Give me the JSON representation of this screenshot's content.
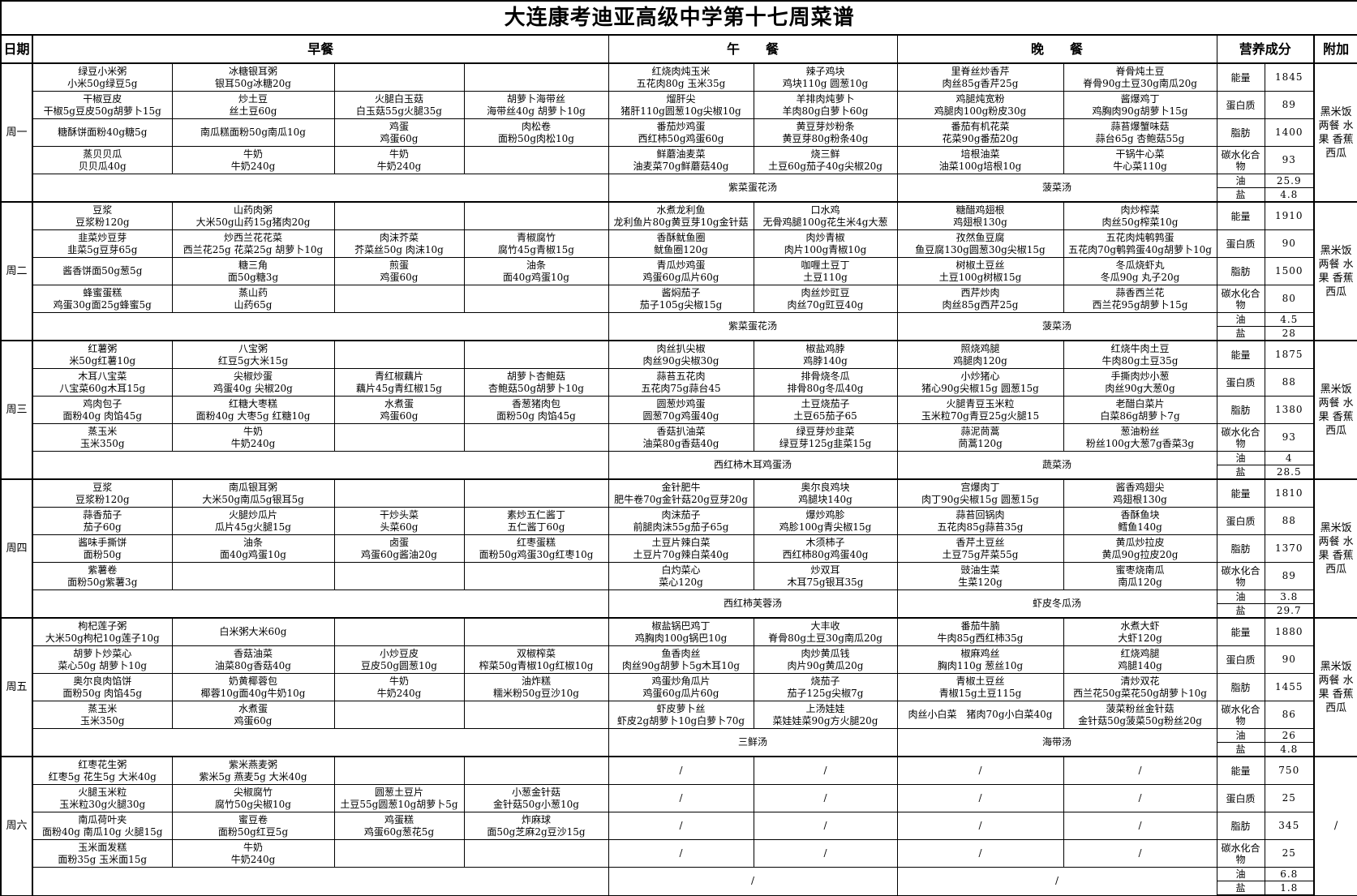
{
  "title": "大连康考迪亚高级中学第十七周菜谱",
  "headers": {
    "date": "日期",
    "breakfast": "早餐",
    "lunch": "午　　餐",
    "dinner": "晚　　餐",
    "nutrition": "营养成分",
    "extra": "附加"
  },
  "nutrition_labels": [
    "能量",
    "蛋白质",
    "脂肪",
    "碳水化合物",
    "油",
    "盐"
  ],
  "days": [
    {
      "name": "周一",
      "breakfast": [
        [
          [
            "绿豆小米粥",
            "小米50g绿豆5g"
          ],
          [
            "冰糖银耳粥",
            "银耳50g冰糖20g"
          ],
          [
            "",
            ""
          ],
          [
            "",
            ""
          ]
        ],
        [
          [
            "干椒豆皮",
            "干椒5g豆皮50g胡萝卜15g"
          ],
          [
            "炒土豆",
            "丝土豆60g"
          ],
          [
            "火腿白玉菇",
            "白玉菇55g火腿35g"
          ],
          [
            "胡萝卜海带丝",
            "海带丝40g 胡萝卜10g"
          ]
        ],
        [
          [
            "糖酥饼面粉40g糖5g",
            ""
          ],
          [
            "南瓜糕面粉50g南瓜10g",
            ""
          ],
          [
            "鸡蛋",
            "鸡蛋60g"
          ],
          [
            "肉松卷",
            "面粉50g肉松10g"
          ]
        ],
        [
          [
            "蒸贝贝瓜",
            "贝贝瓜40g"
          ],
          [
            "牛奶",
            "牛奶240g"
          ],
          [
            "牛奶",
            "牛奶240g"
          ],
          [
            "",
            ""
          ]
        ]
      ],
      "lunch": [
        [
          [
            "红烧肉炖玉米",
            "五花肉80g 玉米35g"
          ],
          [
            "辣子鸡块",
            "鸡块110g 圆葱10g"
          ]
        ],
        [
          [
            "熘肝尖",
            "猪肝110g圆葱10g尖椒10g"
          ],
          [
            "羊排肉炖萝卜",
            "羊肉80g白萝卜60g"
          ]
        ],
        [
          [
            "番茄炒鸡蛋",
            "西红柿50g鸡蛋60g"
          ],
          [
            "黄豆芽炒粉条",
            "黄豆芽80g粉条40g"
          ]
        ],
        [
          [
            "鲜蘑油麦菜",
            "油麦菜70g鲜蘑菇40g"
          ],
          [
            "烧三鲜",
            "土豆60g茄子40g尖椒20g"
          ]
        ]
      ],
      "dinner": [
        [
          [
            "里脊丝炒香芹",
            "肉丝85g香芹25g"
          ],
          [
            "脊骨炖土豆",
            "脊骨90g土豆30g南瓜20g"
          ]
        ],
        [
          [
            "鸡腿炖宽粉",
            "鸡腿肉100g粉皮30g"
          ],
          [
            "酱爆鸡丁",
            "鸡胸肉90g胡萝卜15g"
          ]
        ],
        [
          [
            "番茄有机花菜",
            "花菜90g番茄20g"
          ],
          [
            "蒜苔爆蟹味菇",
            "蒜台65g 杏鲍菇55g"
          ]
        ],
        [
          [
            "培根油菜",
            "油菜100g培根10g"
          ],
          [
            "干锅牛心菜",
            "牛心菜110g"
          ]
        ]
      ],
      "soup_lunch": "紫菜蛋花汤",
      "soup_dinner": "菠菜汤",
      "nutrition": [
        "1845",
        "89",
        "1400",
        "93",
        "25.9",
        "4.8"
      ],
      "extra": "黑米饭 两餐 水果 香蕉 西瓜"
    },
    {
      "name": "周二",
      "breakfast": [
        [
          [
            "豆浆",
            "豆浆粉120g"
          ],
          [
            "山药肉粥",
            "大米50g山药15g猪肉20g"
          ],
          [
            "",
            ""
          ],
          [
            "",
            ""
          ]
        ],
        [
          [
            "韭菜炒豆芽",
            "韭菜5g豆芽65g"
          ],
          [
            "炒西兰花花菜",
            "西兰花25g 花菜25g 胡萝卜10g"
          ],
          [
            "肉沫芥菜",
            "芥菜丝50g 肉沫10g"
          ],
          [
            "青椒腐竹",
            "腐竹45g青椒15g"
          ]
        ],
        [
          [
            "酱香饼面50g葱5g",
            ""
          ],
          [
            "糖三角",
            "面50g糖3g"
          ],
          [
            "煎蛋",
            "鸡蛋60g"
          ],
          [
            "油条",
            "面40g鸡蛋10g"
          ]
        ],
        [
          [
            "蜂蜜蛋糕",
            "鸡蛋30g面25g蜂蜜5g"
          ],
          [
            "蒸山药",
            "山药65g"
          ],
          [
            "",
            ""
          ],
          [
            "",
            ""
          ]
        ]
      ],
      "lunch": [
        [
          [
            "水煮龙利鱼",
            "龙利鱼片80g黄豆芽10g金针菇"
          ],
          [
            "口水鸡",
            "无骨鸡腿100g花生米4g大葱"
          ]
        ],
        [
          [
            "香酥鱿鱼圈",
            "鱿鱼圈120g"
          ],
          [
            "肉炒青椒",
            "肉片100g青椒10g"
          ]
        ],
        [
          [
            "青瓜炒鸡蛋",
            "鸡蛋60g瓜片60g"
          ],
          [
            "咖喱土豆丁",
            "土豆110g"
          ]
        ],
        [
          [
            "酱焖茄子",
            "茄子105g尖椒15g"
          ],
          [
            "肉丝炒豇豆",
            "肉丝70g豇豆40g"
          ]
        ]
      ],
      "dinner": [
        [
          [
            "糖醋鸡翅根",
            "鸡翅根130g"
          ],
          [
            "肉炒榨菜",
            "肉丝50g榨菜10g"
          ]
        ],
        [
          [
            "孜然鱼豆腐",
            "鱼豆腐130g圆葱30g尖椒15g"
          ],
          [
            "五花肉炖鹌鹑蛋",
            "五花肉70g鹌鹑蛋40g胡萝卜10g"
          ]
        ],
        [
          [
            "树椒土豆丝",
            "土豆100g树椒15g"
          ],
          [
            "冬瓜烧虾丸",
            "冬瓜90g 丸子20g"
          ]
        ],
        [
          [
            "西芹炒肉",
            "肉丝85g西芹25g"
          ],
          [
            "蒜香西兰花",
            "西兰花95g胡萝卜15g"
          ]
        ]
      ],
      "soup_lunch": "紫菜蛋花汤",
      "soup_dinner": "菠菜汤",
      "nutrition": [
        "1910",
        "90",
        "1500",
        "80",
        "4.5",
        "28"
      ],
      "extra": "黑米饭 两餐 水果 香蕉 西瓜"
    },
    {
      "name": "周三",
      "breakfast": [
        [
          [
            "红薯粥",
            "米50g红薯10g"
          ],
          [
            "八宝粥",
            "红豆5g大米15g"
          ],
          [
            "",
            ""
          ],
          [
            "",
            ""
          ]
        ],
        [
          [
            "木耳八宝菜",
            "八宝菜60g木耳15g"
          ],
          [
            "尖椒炒蛋",
            "鸡蛋40g 尖椒20g"
          ],
          [
            "青红椒藕片",
            "藕片45g青红椒15g"
          ],
          [
            "胡萝卜杏鲍菇",
            "杏鲍菇50g胡萝卜10g"
          ]
        ],
        [
          [
            "鸡肉包子",
            "面粉40g 肉馅45g"
          ],
          [
            "红糖大枣糕",
            "面粉40g 大枣5g 红糖10g"
          ],
          [
            "水煮蛋",
            "鸡蛋60g"
          ],
          [
            "香葱猪肉包",
            "面粉50g 肉馅45g"
          ]
        ],
        [
          [
            "蒸玉米",
            "玉米350g"
          ],
          [
            "牛奶",
            "牛奶240g"
          ],
          [
            "",
            ""
          ],
          [
            "",
            ""
          ]
        ]
      ],
      "lunch": [
        [
          [
            "肉丝扒尖椒",
            "肉丝90g尖椒30g"
          ],
          [
            "椒盐鸡脖",
            "鸡脖140g"
          ]
        ],
        [
          [
            "蒜苔五花肉",
            "五花肉75g蒜台45"
          ],
          [
            "排骨烧冬瓜",
            "排骨80g冬瓜40g"
          ]
        ],
        [
          [
            "圆葱炒鸡蛋",
            "圆葱70g鸡蛋40g"
          ],
          [
            "土豆烧茄子",
            "土豆65茄子65"
          ]
        ],
        [
          [
            "香菇扒油菜",
            "油菜80g香菇40g"
          ],
          [
            "绿豆芽炒韭菜",
            "绿豆芽125g韭菜15g"
          ]
        ]
      ],
      "dinner": [
        [
          [
            "照烧鸡腿",
            "鸡腿肉120g"
          ],
          [
            "红烧牛肉土豆",
            "牛肉80g土豆35g"
          ]
        ],
        [
          [
            "小炒猪心",
            "猪心90g尖椒15g 圆葱15g"
          ],
          [
            "手撕肉炒小葱",
            "肉丝90g大葱0g"
          ]
        ],
        [
          [
            "火腿青豆玉米粒",
            "玉米粒70g青豆25g火腿15"
          ],
          [
            "老醋白菜片",
            "白菜86g胡萝卜7g"
          ]
        ],
        [
          [
            "蒜泥茼蒿",
            "茼蒿120g"
          ],
          [
            "葱油粉丝",
            "粉丝100g大葱7g香菜3g"
          ]
        ]
      ],
      "soup_lunch": "西红柿木耳鸡蛋汤",
      "soup_dinner": "蔬菜汤",
      "nutrition": [
        "1875",
        "88",
        "1380",
        "93",
        "4",
        "28.5"
      ],
      "extra": "黑米饭 两餐 水果 香蕉 西瓜"
    },
    {
      "name": "周四",
      "breakfast": [
        [
          [
            "豆浆",
            "豆浆粉120g"
          ],
          [
            "南瓜银耳粥",
            "大米50g南瓜5g银耳5g"
          ],
          [
            "",
            ""
          ],
          [
            "",
            ""
          ]
        ],
        [
          [
            "蒜香茄子",
            "茄子60g"
          ],
          [
            "火腿炒瓜片",
            "瓜片45g火腿15g"
          ],
          [
            "干炒头菜",
            "头菜60g"
          ],
          [
            "素炒五仁酱丁",
            "五仁酱丁60g"
          ]
        ],
        [
          [
            "酱味手撕饼",
            "面粉50g"
          ],
          [
            "油条",
            "面40g鸡蛋10g"
          ],
          [
            "卤蛋",
            "鸡蛋60g酱油20g"
          ],
          [
            "红枣蛋糕",
            "面粉50g鸡蛋30g红枣10g"
          ]
        ],
        [
          [
            "紫薯卷",
            "面粉50g紫薯3g"
          ],
          [
            "",
            ""
          ],
          [
            "",
            ""
          ],
          [
            "",
            ""
          ]
        ]
      ],
      "lunch": [
        [
          [
            "金针肥牛",
            "肥牛卷70g金针菇20g豆芽20g"
          ],
          [
            "奥尔良鸡块",
            "鸡腿块140g"
          ]
        ],
        [
          [
            "肉沫茄子",
            "前腿肉沫55g茄子65g"
          ],
          [
            "爆炒鸡胗",
            "鸡胗100g青尖椒15g"
          ]
        ],
        [
          [
            "土豆片辣白菜",
            "土豆片70g辣白菜40g"
          ],
          [
            "木须柿子",
            "西红柿80g鸡蛋40g"
          ]
        ],
        [
          [
            "白灼菜心",
            "菜心120g"
          ],
          [
            "炒双耳",
            "木耳75g银耳35g"
          ]
        ]
      ],
      "dinner": [
        [
          [
            "宫爆肉丁",
            "肉丁90g尖椒15g 圆葱15g"
          ],
          [
            "酱香鸡翅尖",
            "鸡翅根130g"
          ]
        ],
        [
          [
            "蒜苔回锅肉",
            "五花肉85g蒜苔35g"
          ],
          [
            "香酥鱼块",
            "鳕鱼140g"
          ]
        ],
        [
          [
            "香芹土豆丝",
            "土豆75g芹菜55g"
          ],
          [
            "黄瓜炒拉皮",
            "黄瓜90g拉皮20g"
          ]
        ],
        [
          [
            "豉油生菜",
            "生菜120g"
          ],
          [
            "蜜枣烧南瓜",
            "南瓜120g"
          ]
        ]
      ],
      "soup_lunch": "西红柿芙蓉汤",
      "soup_dinner": "虾皮冬瓜汤",
      "nutrition": [
        "1810",
        "88",
        "1370",
        "89",
        "3.8",
        "29.7"
      ],
      "extra": "黑米饭 两餐 水果 香蕉 西瓜"
    },
    {
      "name": "周五",
      "breakfast": [
        [
          [
            "枸杞莲子粥",
            "大米50g枸杞10g莲子10g"
          ],
          [
            "白米粥大米60g",
            ""
          ],
          [
            "",
            ""
          ],
          [
            "",
            ""
          ]
        ],
        [
          [
            "胡萝卜炒菜心",
            "菜心50g 胡萝卜10g"
          ],
          [
            "香菇油菜",
            "油菜80g香菇40g"
          ],
          [
            "小炒豆皮",
            "豆皮50g圆葱10g"
          ],
          [
            "双椒榨菜",
            "榨菜50g青椒10g红椒10g"
          ]
        ],
        [
          [
            "奥尔良肉馅饼",
            "面粉50g 肉馅45g"
          ],
          [
            "奶黄椰蓉包",
            "椰蓉10g面40g牛奶10g"
          ],
          [
            "牛奶",
            "牛奶240g"
          ],
          [
            "油炸糕",
            "糯米粉50g豆沙10g"
          ]
        ],
        [
          [
            "蒸玉米",
            "玉米350g"
          ],
          [
            "水煮蛋",
            "鸡蛋60g"
          ],
          [
            "",
            ""
          ],
          [
            "",
            ""
          ]
        ]
      ],
      "lunch": [
        [
          [
            "椒盐锅巴鸡丁",
            "鸡胸肉100g锅巴10g"
          ],
          [
            "大丰收",
            "脊骨80g土豆30g南瓜20g"
          ]
        ],
        [
          [
            "鱼香肉丝",
            "肉丝90g胡萝卜5g木耳10g"
          ],
          [
            "肉炒黄瓜钱",
            "肉片90g黄瓜20g"
          ]
        ],
        [
          [
            "鸡蛋炒角瓜片",
            "鸡蛋60g瓜片60g"
          ],
          [
            "烧茄子",
            "茄子125g尖椒7g"
          ]
        ],
        [
          [
            "虾皮萝卜丝",
            "虾皮2g胡萝卜10g白萝卜70g"
          ],
          [
            "上汤娃娃",
            "菜娃娃菜90g方火腿20g"
          ]
        ]
      ],
      "dinner": [
        [
          [
            "番茄牛腩",
            "牛肉85g西红柿35g"
          ],
          [
            "水煮大虾",
            "大虾120g"
          ]
        ],
        [
          [
            "椒麻鸡丝",
            "胸肉110g 葱丝10g"
          ],
          [
            "红烧鸡腿",
            "鸡腿140g"
          ]
        ],
        [
          [
            "青椒土豆丝",
            "青椒15g土豆115g"
          ],
          [
            "清炒双花",
            "西兰花50g菜花50g胡萝卜10g"
          ]
        ],
        [
          [
            "肉丝小白菜　猪肉70g小白菜40g",
            ""
          ],
          [
            "菠菜粉丝金针菇",
            "金针菇50g菠菜50g粉丝20g"
          ]
        ]
      ],
      "soup_lunch": "三鲜汤",
      "soup_dinner": "海带汤",
      "nutrition": [
        "1880",
        "90",
        "1455",
        "86",
        "26",
        "4.8"
      ],
      "extra": "黑米饭 两餐 水果 香蕉 西瓜"
    },
    {
      "name": "周六",
      "breakfast": [
        [
          [
            "红枣花生粥",
            "红枣5g 花生5g 大米40g"
          ],
          [
            "紫米燕麦粥",
            "紫米5g 燕麦5g 大米40g"
          ],
          [
            "",
            ""
          ],
          [
            "",
            ""
          ]
        ],
        [
          [
            "火腿玉米粒",
            "玉米粒30g火腿30g"
          ],
          [
            "尖椒腐竹",
            "腐竹50g尖椒10g"
          ],
          [
            "圆葱土豆片",
            "土豆55g圆葱10g胡萝卜5g"
          ],
          [
            "小葱金针菇",
            "金针菇50g小葱10g"
          ]
        ],
        [
          [
            "南瓜荷叶夹",
            "面粉40g 南瓜10g 火腿15g"
          ],
          [
            "蜜豆卷",
            "面粉50g红豆5g"
          ],
          [
            "鸡蛋糕",
            "鸡蛋60g葱花5g"
          ],
          [
            "炸麻球",
            "面50g芝麻2g豆沙15g"
          ]
        ],
        [
          [
            "玉米面发糕",
            "面粉35g 玉米面15g"
          ],
          [
            "牛奶",
            "牛奶240g"
          ],
          [
            "",
            ""
          ],
          [
            "",
            ""
          ]
        ]
      ],
      "lunch": [
        [
          [
            "/",
            ""
          ],
          [
            "/",
            ""
          ]
        ],
        [
          [
            "/",
            ""
          ],
          [
            "/",
            ""
          ]
        ],
        [
          [
            "/",
            ""
          ],
          [
            "/",
            ""
          ]
        ],
        [
          [
            "/",
            ""
          ],
          [
            "/",
            ""
          ]
        ]
      ],
      "dinner": [
        [
          [
            "/",
            ""
          ],
          [
            "/",
            ""
          ]
        ],
        [
          [
            "/",
            ""
          ],
          [
            "/",
            ""
          ]
        ],
        [
          [
            "/",
            ""
          ],
          [
            "/",
            ""
          ]
        ],
        [
          [
            "/",
            ""
          ],
          [
            "/",
            ""
          ]
        ]
      ],
      "soup_lunch": "/",
      "soup_dinner": "/",
      "nutrition": [
        "750",
        "25",
        "345",
        "25",
        "6.8",
        "1.8"
      ],
      "extra": "/"
    }
  ]
}
